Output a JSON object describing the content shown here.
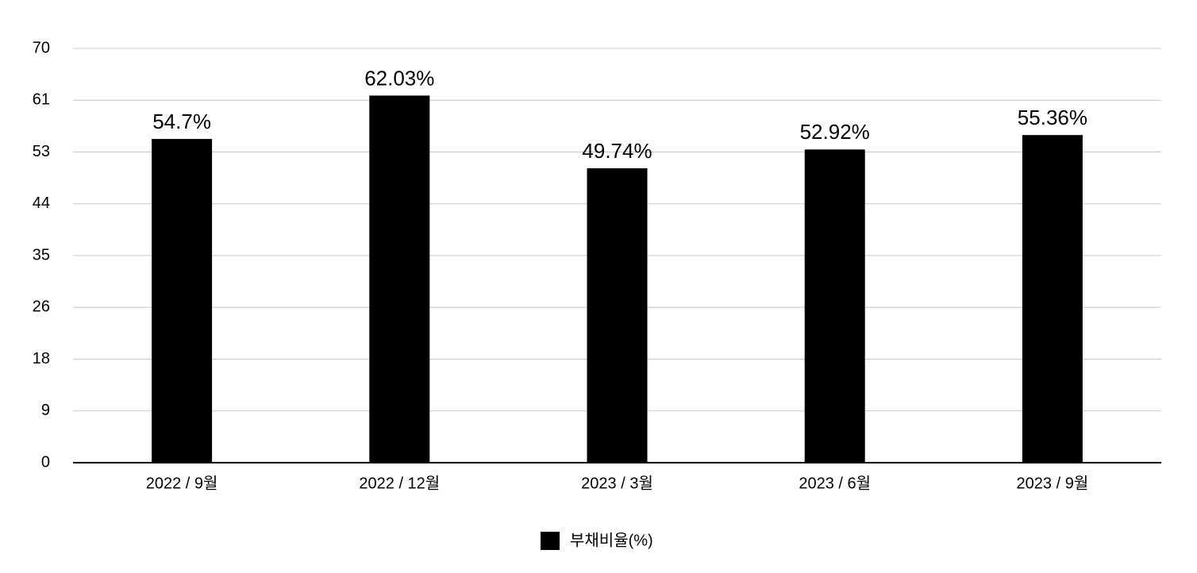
{
  "chart_data": {
    "type": "bar",
    "categories": [
      "2022 / 9월",
      "2022 / 12월",
      "2023 / 3월",
      "2023 / 6월",
      "2023 / 9월"
    ],
    "series": [
      {
        "name": "부채비율(%)",
        "color": "#000000",
        "values": [
          54.7,
          62.03,
          49.74,
          52.92,
          55.36
        ],
        "value_labels": [
          "54.7%",
          "62.03%",
          "49.74%",
          "52.92%",
          "55.36%"
        ]
      }
    ],
    "ylim": [
      0,
      70
    ],
    "yticks": [
      0,
      {
        "value": 8.75,
        "label": "9"
      },
      {
        "value": 17.5,
        "label": "18"
      },
      {
        "value": 26.25,
        "label": "26"
      },
      35,
      {
        "value": 43.75,
        "label": "44"
      },
      {
        "value": 52.5,
        "label": "53"
      },
      {
        "value": 61.25,
        "label": "61"
      },
      70
    ],
    "grid": true,
    "legend": "bottom"
  }
}
